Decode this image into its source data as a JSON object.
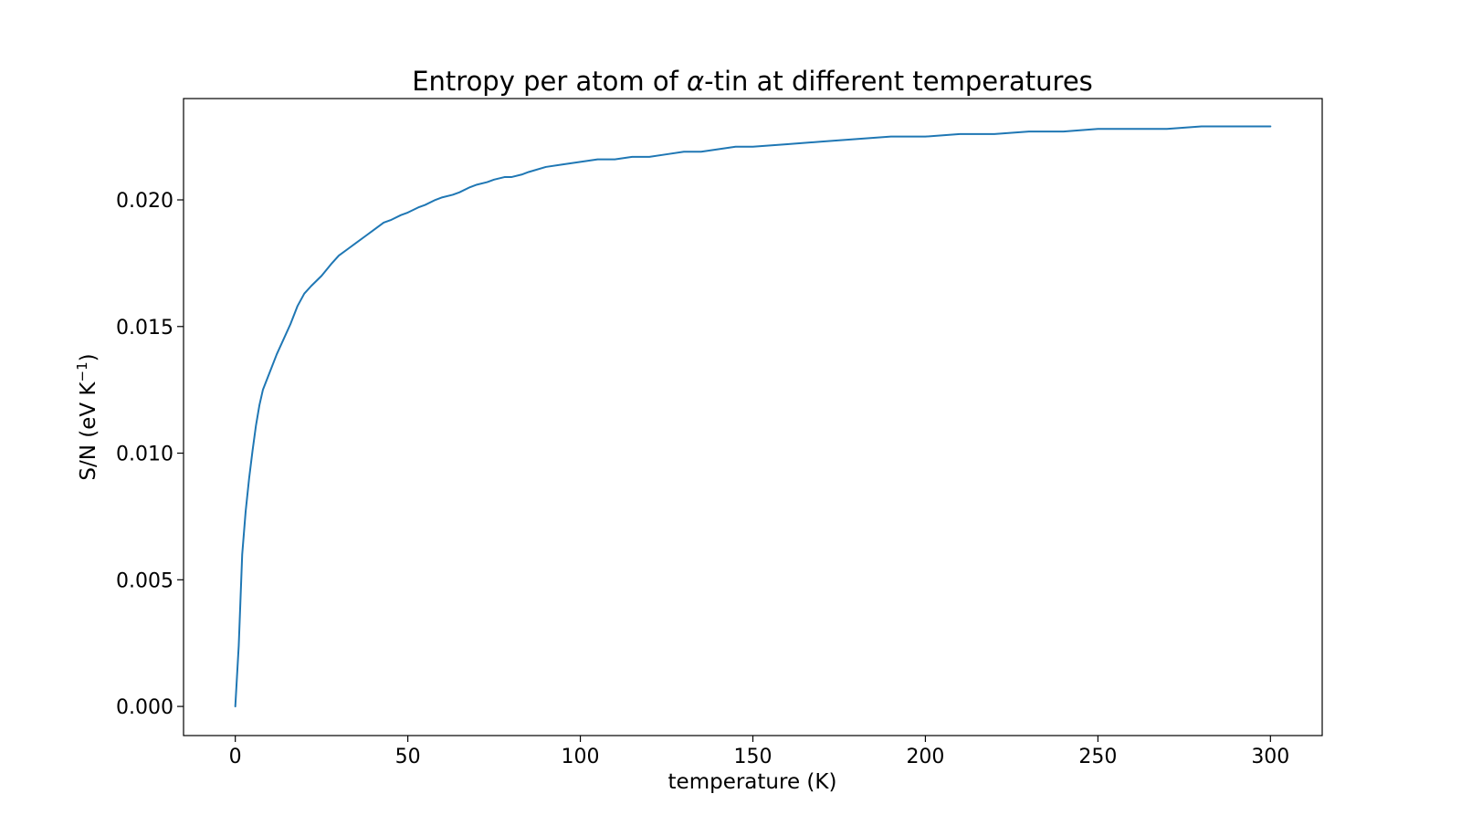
{
  "chart_data": {
    "type": "line",
    "title": {
      "prefix": "Entropy per atom of ",
      "symbol": "α",
      "suffix": "-tin at different temperatures"
    },
    "xlabel": "temperature (K)",
    "ylabel": {
      "base": "S/N (eV K",
      "superscript": "−1",
      "close": ")"
    },
    "xlim": [
      -15,
      315
    ],
    "ylim": [
      -0.00115,
      0.024
    ],
    "xticks": [
      {
        "value": 0,
        "label": "0"
      },
      {
        "value": 50,
        "label": "50"
      },
      {
        "value": 100,
        "label": "100"
      },
      {
        "value": 150,
        "label": "150"
      },
      {
        "value": 200,
        "label": "200"
      },
      {
        "value": 250,
        "label": "250"
      },
      {
        "value": 300,
        "label": "300"
      }
    ],
    "yticks": [
      {
        "value": 0.0,
        "label": "0.000"
      },
      {
        "value": 0.005,
        "label": "0.005"
      },
      {
        "value": 0.01,
        "label": "0.010"
      },
      {
        "value": 0.015,
        "label": "0.015"
      },
      {
        "value": 0.02,
        "label": "0.020"
      }
    ],
    "grid": false,
    "legend": null,
    "series": [
      {
        "color": "#1f77b4",
        "x": [
          0,
          1,
          2,
          3,
          4,
          5,
          6,
          7,
          8,
          10,
          12,
          14,
          16,
          18,
          20,
          22,
          25,
          28,
          30,
          33,
          35,
          38,
          40,
          43,
          45,
          48,
          50,
          53,
          55,
          58,
          60,
          63,
          65,
          68,
          70,
          73,
          75,
          78,
          80,
          83,
          85,
          90,
          95,
          100,
          105,
          110,
          115,
          120,
          125,
          130,
          135,
          140,
          145,
          150,
          160,
          170,
          180,
          190,
          200,
          210,
          220,
          230,
          240,
          250,
          260,
          270,
          280,
          290,
          300
        ],
        "y": [
          0.0,
          0.0024,
          0.006,
          0.0077,
          0.009,
          0.0101,
          0.0111,
          0.0119,
          0.0125,
          0.0132,
          0.0139,
          0.0145,
          0.0151,
          0.0158,
          0.0163,
          0.0166,
          0.017,
          0.0175,
          0.0178,
          0.0181,
          0.0183,
          0.0186,
          0.0188,
          0.0191,
          0.0192,
          0.0194,
          0.0195,
          0.0197,
          0.0198,
          0.02,
          0.0201,
          0.0202,
          0.0203,
          0.0205,
          0.0206,
          0.0207,
          0.0208,
          0.0209,
          0.0209,
          0.021,
          0.0211,
          0.0213,
          0.0214,
          0.0215,
          0.0216,
          0.0216,
          0.0217,
          0.0217,
          0.0218,
          0.0219,
          0.0219,
          0.022,
          0.0221,
          0.0221,
          0.0222,
          0.0223,
          0.0224,
          0.0225,
          0.0225,
          0.0226,
          0.0226,
          0.0227,
          0.0227,
          0.0228,
          0.0228,
          0.0228,
          0.0229,
          0.0229,
          0.0229
        ]
      }
    ]
  }
}
